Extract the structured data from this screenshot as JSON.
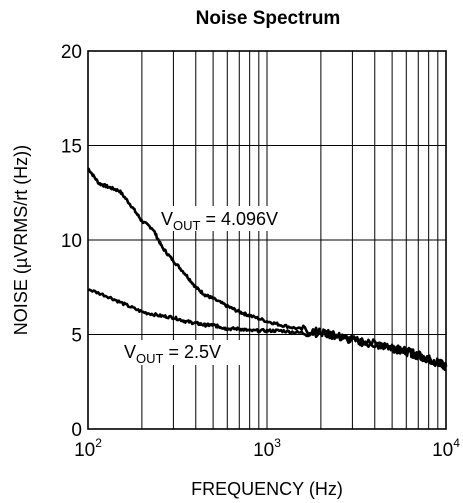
{
  "chart_data": {
    "type": "line",
    "title": "Noise Spectrum",
    "xlabel": "FREQUENCY (Hz)",
    "ylabel": "NOISE (µVRMS/rt (Hz))",
    "xscale": "log",
    "xlim": [
      100,
      10000
    ],
    "ylim": [
      0,
      20
    ],
    "grid": true,
    "x_tick_labels": [
      {
        "base": "10",
        "exp": "2"
      },
      {
        "base": "10",
        "exp": "3"
      },
      {
        "base": "10",
        "exp": "4"
      }
    ],
    "y_tick_labels": [
      "0",
      "5",
      "10",
      "15",
      "20"
    ],
    "annotations": [
      {
        "main": "V",
        "sub": "OUT",
        "rest": " = 4.096V"
      },
      {
        "main": "V",
        "sub": "OUT",
        "rest": " = 2.5V"
      }
    ],
    "series": [
      {
        "x": [
          100,
          115,
          130,
          150,
          175,
          200,
          230,
          260,
          300,
          350,
          400,
          450,
          500,
          600,
          700,
          800,
          1000,
          1200,
          1500,
          2000,
          2500,
          3000,
          4000,
          5000,
          6000,
          7000,
          8000,
          9000,
          10000
        ],
        "y": [
          13.8,
          13.0,
          12.8,
          12.6,
          11.8,
          11.0,
          10.6,
          9.6,
          8.9,
          8.2,
          7.5,
          7.1,
          6.9,
          6.5,
          6.2,
          6.0,
          5.7,
          5.5,
          5.3,
          5.1,
          4.9,
          4.7,
          4.5,
          4.3,
          4.1,
          3.9,
          3.7,
          3.5,
          3.3
        ]
      },
      {
        "x": [
          100,
          130,
          160,
          200,
          250,
          300,
          350,
          400,
          450,
          500,
          550,
          600,
          700,
          800,
          1000,
          1200,
          1500,
          2000,
          2500,
          3000,
          4000,
          5000,
          6000,
          7000,
          8000,
          9000,
          10000
        ],
        "y": [
          7.4,
          7.0,
          6.6,
          6.2,
          6.0,
          5.9,
          5.7,
          5.6,
          5.5,
          5.5,
          5.4,
          5.3,
          5.3,
          5.2,
          5.2,
          5.2,
          5.1,
          5.1,
          4.9,
          4.7,
          4.5,
          4.3,
          4.1,
          3.9,
          3.7,
          3.5,
          3.3
        ]
      }
    ]
  }
}
